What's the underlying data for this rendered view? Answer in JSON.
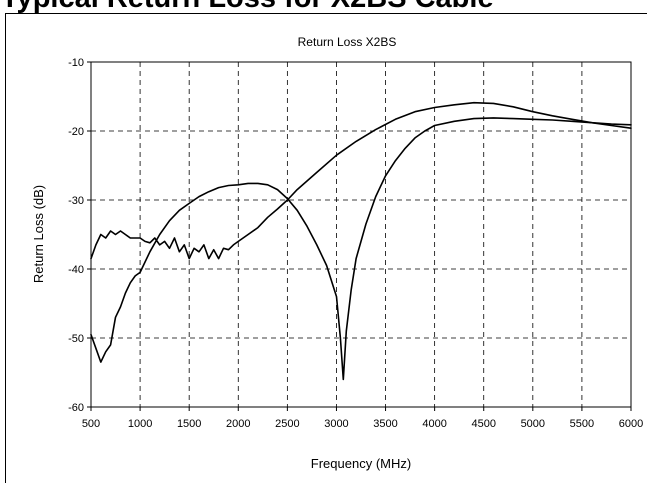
{
  "page_heading": "Typical Return Loss for X2BS Cable",
  "chart_data": {
    "type": "line",
    "title": "Return Loss X2BS",
    "xlabel": "Frequency (MHz)",
    "ylabel": "Return Loss (dB)",
    "xlim": [
      500,
      6000
    ],
    "ylim": [
      -60,
      -10
    ],
    "x_ticks": [
      500,
      1000,
      1500,
      2000,
      2500,
      3000,
      3500,
      4000,
      4500,
      5000,
      5500,
      6000
    ],
    "y_ticks": [
      -10,
      -20,
      -30,
      -40,
      -50,
      -60
    ],
    "grid": true,
    "grid_style": "dashed",
    "legend": "none",
    "line_color": "#000000",
    "series": [
      {
        "x": [
          500,
          550,
          600,
          650,
          700,
          750,
          800,
          850,
          900,
          950,
          1000,
          1100,
          1200,
          1300,
          1400,
          1500,
          1600,
          1700,
          1800,
          1900,
          2000,
          2100,
          2200,
          2300,
          2400,
          2500,
          2600,
          2700,
          2800,
          2900,
          3000,
          3040,
          3070,
          3100,
          3150,
          3200,
          3300,
          3400,
          3500,
          3600,
          3700,
          3800,
          3900,
          4000,
          4200,
          4400,
          4600,
          4800,
          5000,
          5200,
          5400,
          5600,
          5800,
          6000
        ],
        "y": [
          -49.5,
          -51.5,
          -53.5,
          -52,
          -51,
          -47,
          -45.5,
          -43.5,
          -42,
          -41,
          -40.5,
          -37.5,
          -35,
          -33,
          -31.5,
          -30.5,
          -29.5,
          -28.8,
          -28.2,
          -27.9,
          -27.8,
          -27.6,
          -27.6,
          -27.8,
          -28.5,
          -29.8,
          -31.5,
          -33.8,
          -36.5,
          -39.5,
          -44,
          -50,
          -56,
          -49,
          -43,
          -38.5,
          -33.5,
          -29.5,
          -26.5,
          -24.3,
          -22.5,
          -21,
          -20,
          -19.2,
          -18.6,
          -18.2,
          -18.1,
          -18.2,
          -18.3,
          -18.4,
          -18.6,
          -18.8,
          -19,
          -19.1
        ]
      },
      {
        "x": [
          500,
          550,
          600,
          650,
          700,
          750,
          800,
          850,
          900,
          950,
          1000,
          1050,
          1100,
          1150,
          1200,
          1250,
          1300,
          1350,
          1400,
          1450,
          1500,
          1550,
          1600,
          1650,
          1700,
          1750,
          1800,
          1850,
          1900,
          1950,
          2000,
          2100,
          2200,
          2300,
          2400,
          2500,
          2600,
          2800,
          3000,
          3200,
          3400,
          3600,
          3800,
          4000,
          4200,
          4400,
          4600,
          4800,
          5000,
          5200,
          5400,
          5600,
          5800,
          6000
        ],
        "y": [
          -38.5,
          -36.5,
          -35,
          -35.5,
          -34.5,
          -35,
          -34.5,
          -35,
          -35.5,
          -35.5,
          -35.5,
          -36,
          -36.2,
          -35.5,
          -36.5,
          -36,
          -37,
          -35.5,
          -37.5,
          -36.5,
          -38.5,
          -37,
          -37.5,
          -36.5,
          -38.5,
          -37.2,
          -38.5,
          -37,
          -37.2,
          -36.5,
          -36,
          -35,
          -34,
          -32.5,
          -31.3,
          -30,
          -28.5,
          -26,
          -23.5,
          -21.5,
          -19.8,
          -18.3,
          -17.2,
          -16.6,
          -16.2,
          -15.9,
          -16,
          -16.5,
          -17.2,
          -17.8,
          -18.3,
          -18.8,
          -19.2,
          -19.6
        ]
      }
    ]
  }
}
